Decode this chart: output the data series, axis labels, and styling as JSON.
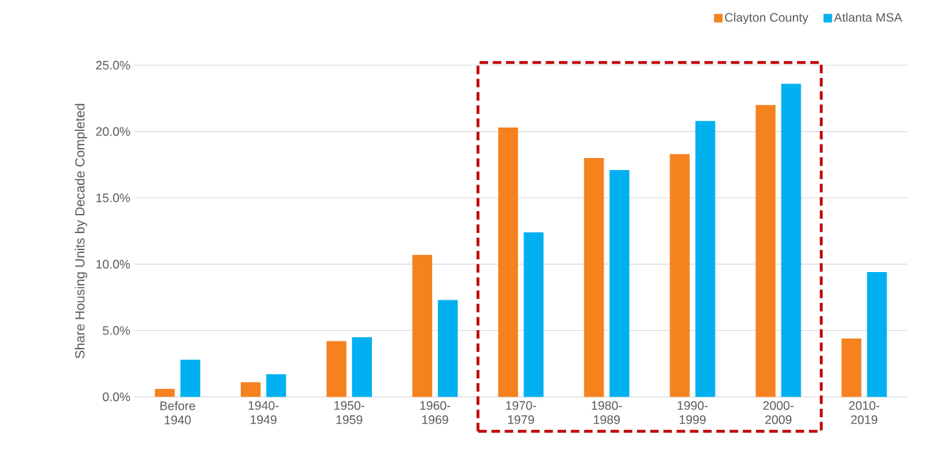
{
  "chart_data": {
    "type": "bar",
    "ylabel": "Share Housing Units by Decade Completed",
    "categories": [
      "Before 1940",
      "1940-1949",
      "1950-1959",
      "1960-1969",
      "1970-1979",
      "1980-1989",
      "1990-1999",
      "2000-2009",
      "2010-2019"
    ],
    "series": [
      {
        "name": "Clayton County",
        "color": "#f5821f",
        "values": [
          0.6,
          1.1,
          4.2,
          10.7,
          20.3,
          18.0,
          18.3,
          22.0,
          4.4
        ]
      },
      {
        "name": "Atlanta MSA",
        "color": "#00b0f0",
        "values": [
          2.8,
          1.7,
          4.5,
          7.3,
          12.4,
          17.1,
          20.8,
          23.6,
          9.4
        ]
      }
    ],
    "ylim": [
      0,
      25
    ],
    "yticks": [
      {
        "value": 0,
        "label": "0.0%"
      },
      {
        "value": 5,
        "label": "5.0%"
      },
      {
        "value": 10,
        "label": "10.0%"
      },
      {
        "value": 15,
        "label": "15.0%"
      },
      {
        "value": 20,
        "label": "20.0%"
      },
      {
        "value": 25,
        "label": "25.0%"
      }
    ],
    "grid": "y",
    "legend": "top right"
  }
}
